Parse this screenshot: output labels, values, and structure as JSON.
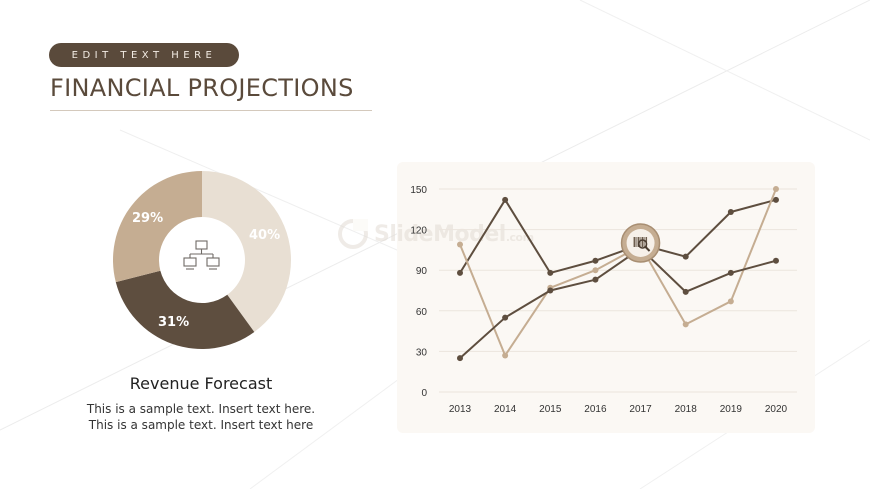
{
  "header": {
    "tag_label": "EDIT TEXT HERE",
    "title": "FINANCIAL PROJECTIONS"
  },
  "donut": {
    "segments": [
      {
        "label": "40%",
        "value": 40,
        "color": "#e8dfd3"
      },
      {
        "label": "31%",
        "value": 31,
        "color": "#5e4e3f"
      },
      {
        "label": "29%",
        "value": 29,
        "color": "#c5ad92"
      }
    ],
    "center_icon": "network-hierarchy-icon"
  },
  "caption": {
    "title": "Revenue Forecast",
    "line1": "This is a sample text. Insert text here.",
    "line2": "This is a sample text. Insert text here"
  },
  "watermark": {
    "text": "SlideModel",
    "suffix": ".com"
  },
  "chart_data": {
    "type": "line",
    "categories": [
      "2013",
      "2014",
      "2015",
      "2016",
      "2017",
      "2018",
      "2019",
      "2020"
    ],
    "ylim": [
      0,
      150
    ],
    "yticks": [
      0,
      30,
      60,
      90,
      120,
      150
    ],
    "grid": true,
    "center_icon": "barcode-search-icon",
    "series": [
      {
        "color": "#5e4e3f",
        "values": [
          88,
          142,
          88,
          97,
          109,
          100,
          133,
          142
        ]
      },
      {
        "color": "#c5ad92",
        "values": [
          109,
          27,
          77,
          90,
          108,
          50,
          67,
          150
        ]
      },
      {
        "color": "#5e4e3f",
        "values": [
          25,
          55,
          75,
          83,
          106,
          74,
          88,
          97
        ]
      }
    ]
  }
}
